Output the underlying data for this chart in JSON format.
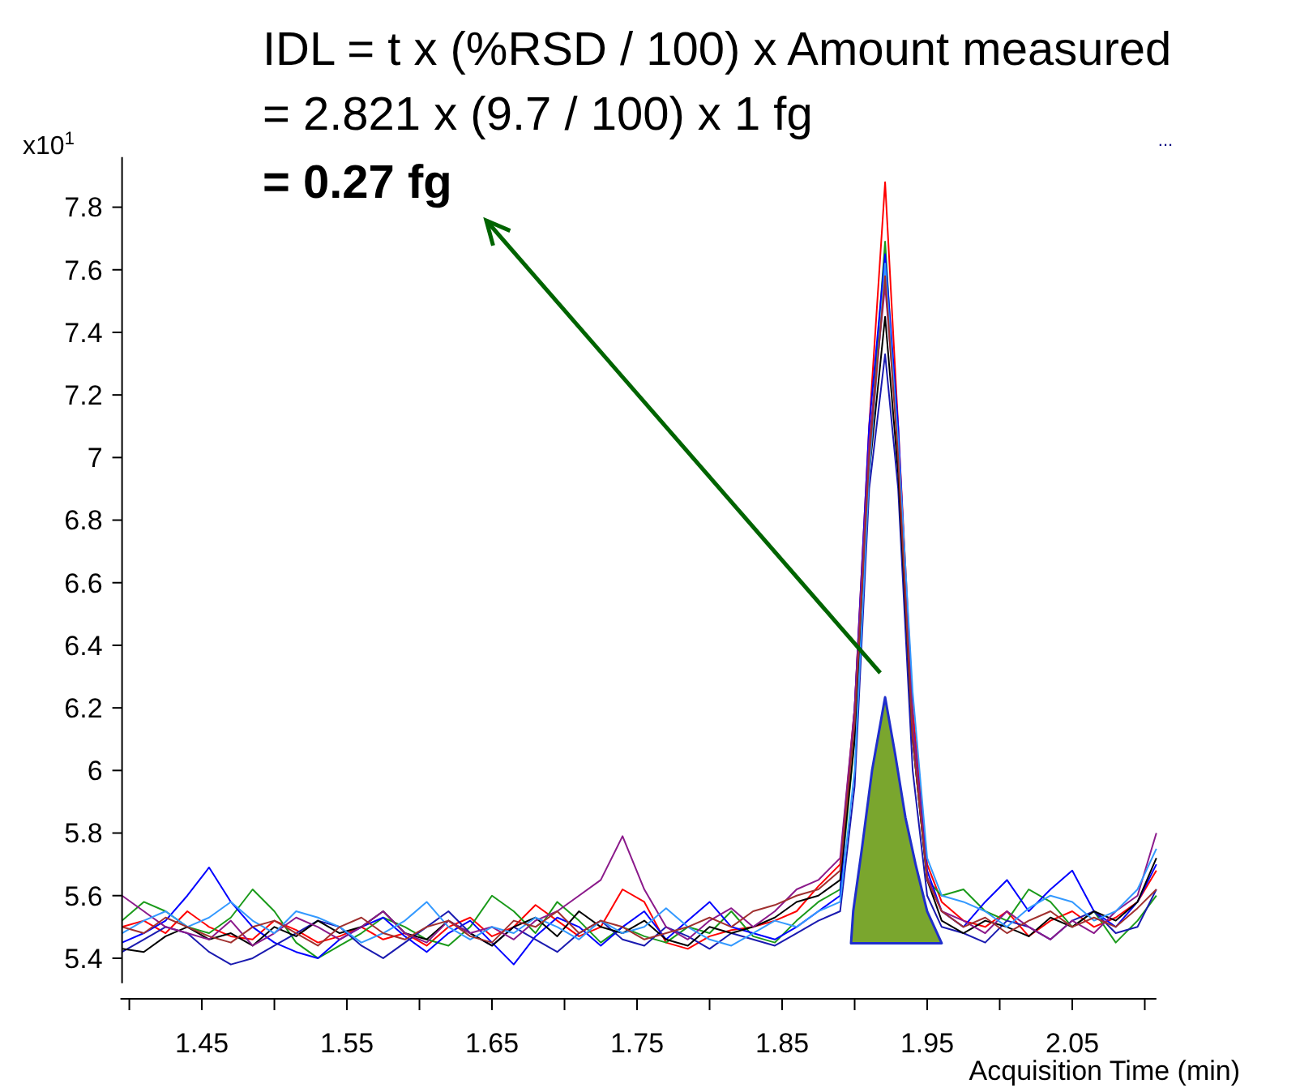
{
  "chart_data": {
    "type": "line",
    "xlabel": "Acquisition Time (min)",
    "ylabel": "x10$^{1}$",
    "annotations": [
      "IDL = t x (%RSD / 100) x Amount measured",
      "= 2.821 x (9.7 / 100) x 1 fg",
      "= 0.27 fg",
      "..."
    ],
    "x": [
      1.395,
      1.41,
      1.425,
      1.44,
      1.455,
      1.47,
      1.485,
      1.5,
      1.515,
      1.53,
      1.545,
      1.56,
      1.575,
      1.59,
      1.605,
      1.62,
      1.635,
      1.65,
      1.665,
      1.68,
      1.695,
      1.71,
      1.725,
      1.74,
      1.755,
      1.77,
      1.785,
      1.8,
      1.815,
      1.83,
      1.845,
      1.86,
      1.875,
      1.89,
      1.9,
      1.91,
      1.921,
      1.93,
      1.94,
      1.95,
      1.96,
      1.975,
      1.99,
      2.005,
      2.02,
      2.035,
      2.05,
      2.065,
      2.08,
      2.095,
      2.108
    ],
    "series": [
      {
        "color": "#ff0000",
        "values": [
          5.5,
          5.52,
          5.48,
          5.55,
          5.5,
          5.47,
          5.46,
          5.52,
          5.49,
          5.45,
          5.47,
          5.5,
          5.46,
          5.48,
          5.44,
          5.5,
          5.53,
          5.47,
          5.5,
          5.57,
          5.52,
          5.47,
          5.5,
          5.62,
          5.58,
          5.45,
          5.43,
          5.47,
          5.49,
          5.5,
          5.52,
          5.55,
          5.63,
          5.7,
          6.2,
          7.1,
          7.88,
          7.1,
          6.2,
          5.7,
          5.58,
          5.52,
          5.5,
          5.55,
          5.47,
          5.52,
          5.55,
          5.5,
          5.53,
          5.58,
          5.68
        ]
      },
      {
        "color": "#1a9a1a",
        "values": [
          5.52,
          5.58,
          5.55,
          5.5,
          5.48,
          5.53,
          5.62,
          5.55,
          5.45,
          5.4,
          5.44,
          5.48,
          5.53,
          5.5,
          5.46,
          5.44,
          5.5,
          5.6,
          5.55,
          5.48,
          5.58,
          5.52,
          5.45,
          5.5,
          5.47,
          5.45,
          5.5,
          5.48,
          5.55,
          5.47,
          5.45,
          5.52,
          5.58,
          5.62,
          6.1,
          7.0,
          7.69,
          7.0,
          6.1,
          5.65,
          5.6,
          5.62,
          5.55,
          5.52,
          5.62,
          5.58,
          5.5,
          5.55,
          5.45,
          5.52,
          5.6
        ]
      },
      {
        "color": "#0000ff",
        "values": [
          5.45,
          5.48,
          5.52,
          5.6,
          5.69,
          5.58,
          5.5,
          5.45,
          5.42,
          5.4,
          5.46,
          5.5,
          5.53,
          5.47,
          5.42,
          5.48,
          5.52,
          5.45,
          5.38,
          5.47,
          5.53,
          5.5,
          5.44,
          5.5,
          5.55,
          5.46,
          5.52,
          5.58,
          5.5,
          5.48,
          5.46,
          5.5,
          5.55,
          5.6,
          6.2,
          7.1,
          7.65,
          7.1,
          6.15,
          5.68,
          5.55,
          5.5,
          5.58,
          5.65,
          5.55,
          5.62,
          5.68,
          5.55,
          5.5,
          5.58,
          5.7
        ]
      },
      {
        "color": "#1a1ab0",
        "values": [
          5.42,
          5.46,
          5.5,
          5.48,
          5.42,
          5.38,
          5.4,
          5.44,
          5.48,
          5.52,
          5.5,
          5.44,
          5.4,
          5.45,
          5.5,
          5.55,
          5.48,
          5.44,
          5.5,
          5.46,
          5.42,
          5.48,
          5.52,
          5.46,
          5.44,
          5.5,
          5.47,
          5.43,
          5.48,
          5.46,
          5.44,
          5.48,
          5.52,
          5.55,
          5.95,
          6.9,
          7.33,
          6.9,
          6.0,
          5.6,
          5.5,
          5.48,
          5.45,
          5.52,
          5.5,
          5.46,
          5.52,
          5.55,
          5.48,
          5.5,
          5.62
        ]
      },
      {
        "color": "#000000",
        "values": [
          5.43,
          5.42,
          5.47,
          5.5,
          5.46,
          5.48,
          5.44,
          5.5,
          5.47,
          5.52,
          5.48,
          5.5,
          5.55,
          5.48,
          5.46,
          5.52,
          5.48,
          5.44,
          5.5,
          5.53,
          5.47,
          5.55,
          5.5,
          5.48,
          5.52,
          5.46,
          5.44,
          5.5,
          5.48,
          5.5,
          5.53,
          5.58,
          5.6,
          5.65,
          6.1,
          6.95,
          7.45,
          6.95,
          6.1,
          5.65,
          5.52,
          5.48,
          5.52,
          5.5,
          5.47,
          5.53,
          5.5,
          5.55,
          5.52,
          5.58,
          5.72
        ]
      },
      {
        "color": "#8b1a8b",
        "values": [
          5.6,
          5.55,
          5.5,
          5.48,
          5.46,
          5.52,
          5.44,
          5.48,
          5.53,
          5.5,
          5.46,
          5.5,
          5.55,
          5.48,
          5.45,
          5.52,
          5.48,
          5.5,
          5.46,
          5.52,
          5.55,
          5.6,
          5.65,
          5.79,
          5.62,
          5.5,
          5.46,
          5.52,
          5.56,
          5.5,
          5.55,
          5.62,
          5.65,
          5.72,
          6.2,
          7.05,
          7.55,
          7.05,
          6.15,
          5.66,
          5.55,
          5.52,
          5.48,
          5.55,
          5.5,
          5.46,
          5.52,
          5.48,
          5.55,
          5.6,
          5.8
        ]
      },
      {
        "color": "#3399ff",
        "values": [
          5.48,
          5.52,
          5.55,
          5.5,
          5.53,
          5.58,
          5.52,
          5.48,
          5.55,
          5.53,
          5.5,
          5.45,
          5.48,
          5.52,
          5.58,
          5.5,
          5.46,
          5.5,
          5.48,
          5.53,
          5.5,
          5.46,
          5.52,
          5.48,
          5.5,
          5.56,
          5.5,
          5.46,
          5.44,
          5.48,
          5.52,
          5.5,
          5.55,
          5.58,
          6.0,
          6.95,
          7.62,
          7.05,
          6.25,
          5.72,
          5.6,
          5.58,
          5.55,
          5.5,
          5.56,
          5.6,
          5.58,
          5.52,
          5.55,
          5.62,
          5.75
        ]
      },
      {
        "color": "#a0302f",
        "values": [
          5.5,
          5.48,
          5.53,
          5.5,
          5.47,
          5.45,
          5.5,
          5.52,
          5.48,
          5.44,
          5.5,
          5.53,
          5.48,
          5.46,
          5.5,
          5.52,
          5.47,
          5.45,
          5.52,
          5.5,
          5.55,
          5.48,
          5.52,
          5.5,
          5.46,
          5.48,
          5.5,
          5.53,
          5.5,
          5.55,
          5.57,
          5.6,
          5.62,
          5.68,
          6.15,
          7.0,
          7.58,
          7.0,
          6.1,
          5.65,
          5.55,
          5.5,
          5.53,
          5.48,
          5.52,
          5.55,
          5.5,
          5.53,
          5.5,
          5.56,
          5.62
        ]
      },
      {
        "type": "area",
        "color": "#7aa62e",
        "x": [
          1.8975,
          1.899,
          1.905,
          1.912,
          1.921,
          1.928,
          1.935,
          1.942,
          1.95,
          1.96
        ],
        "values": [
          5.448,
          5.55,
          5.75,
          6.0,
          6.234,
          6.05,
          5.85,
          5.7,
          5.55,
          5.448
        ]
      }
    ],
    "xlim": [
      1.395,
      2.108
    ],
    "xticks": [
      {
        "value": 1.4,
        "label": null
      },
      1.45,
      {
        "value": 1.5,
        "label": null
      },
      1.55,
      {
        "value": 1.6,
        "label": null
      },
      1.65,
      {
        "value": 1.7,
        "label": null
      },
      1.75,
      {
        "value": 1.8,
        "label": null
      },
      1.85,
      {
        "value": 1.9,
        "label": null
      },
      1.95,
      {
        "value": 2.0,
        "label": null
      },
      2.05,
      {
        "value": 2.1,
        "label": null
      }
    ],
    "ylim": [
      5.32,
      7.96
    ],
    "yticks": [
      5.4,
      5.6,
      5.8,
      6,
      6.2,
      6.4,
      6.6,
      6.8,
      7,
      7.2,
      7.4,
      7.6,
      7.8
    ],
    "grid": false,
    "line_style": "solid",
    "marker": "none"
  }
}
